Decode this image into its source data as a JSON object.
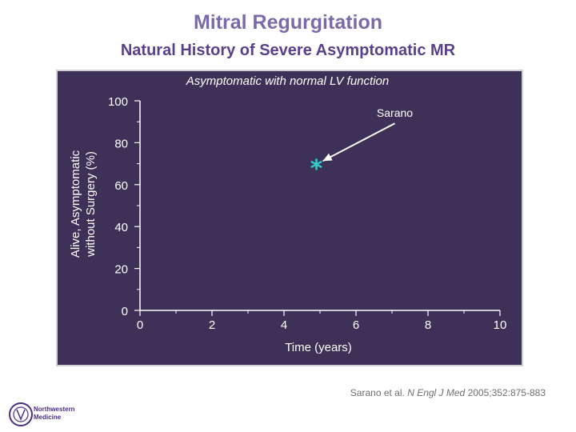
{
  "slide": {
    "title": "Mitral Regurgitation",
    "subtitle": "Natural History of Severe Asymptomatic MR",
    "citation": {
      "authors": "Sarano et al.",
      "journal": "N Engl J Med",
      "details": "2005;352:875-883"
    },
    "logo_lines": [
      "Northwestern",
      "Medicine"
    ]
  },
  "chart_data": {
    "type": "scatter",
    "title": "Asymptomatic with normal LV function",
    "xlabel": "Time (years)",
    "ylabel_lines": [
      "Alive, Asymptomatic",
      "without Surgery (%)"
    ],
    "x_ticks": [
      0,
      2,
      4,
      6,
      8,
      10
    ],
    "y_ticks": [
      0,
      20,
      40,
      60,
      80,
      100
    ],
    "xlim": [
      0,
      10
    ],
    "ylim": [
      0,
      100
    ],
    "grid": false,
    "points": [
      {
        "x": 4.9,
        "y": 69,
        "marker": "*"
      }
    ],
    "annotations": [
      {
        "text": "Sarano",
        "target": {
          "x": 4.9,
          "y": 69
        }
      }
    ],
    "colors": {
      "panel_bg": "#3e3157",
      "axis": "#ffffff",
      "marker": "#33cccc",
      "arrow": "#ffffff"
    }
  }
}
